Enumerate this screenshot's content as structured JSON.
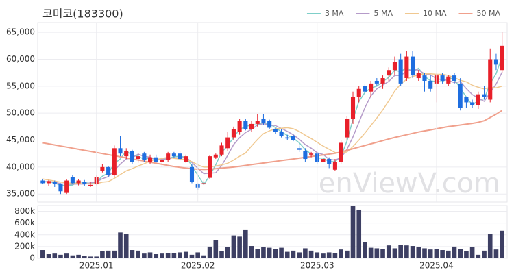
{
  "chart_data": [
    {
      "type": "candlestick",
      "title": "코미코(183300)",
      "watermark": "enViewV.com",
      "up_color": "#e8202a",
      "down_color": "#1e6ee0",
      "grid": true,
      "legend": "top-right",
      "ylim": [
        33500,
        66800
      ],
      "yticks": [
        {
          "value": 35000,
          "label": "35,000"
        },
        {
          "value": 40000,
          "label": "40,000"
        },
        {
          "value": 45000,
          "label": "45,000"
        },
        {
          "value": 50000,
          "label": "50,000"
        },
        {
          "value": 55000,
          "label": "55,000"
        },
        {
          "value": 60000,
          "label": "60,000"
        },
        {
          "value": 65000,
          "label": "65,000"
        }
      ],
      "open": [
        37500,
        37000,
        37200,
        36800,
        35200,
        38200,
        37000,
        37300,
        36500,
        36800,
        39300,
        40000,
        38500,
        43500,
        42000,
        43000,
        41500,
        42500,
        41000,
        41800,
        41000,
        41300,
        42500,
        42500,
        41000,
        40000,
        36800,
        36800,
        38000,
        41800,
        42300,
        43500,
        45500,
        46500,
        48500,
        47000,
        48000,
        49000,
        48500,
        47000,
        46500,
        45500,
        45800,
        43500,
        43000,
        42300,
        42500,
        41000,
        41500,
        39500,
        41000,
        45500,
        49000,
        53000,
        55000,
        54000,
        56000,
        55500,
        57000,
        58000,
        60000,
        56500,
        60500,
        56500,
        57000,
        56000,
        55500,
        57000,
        55500,
        57000,
        55500,
        53000,
        52000,
        51500,
        53500,
        52500,
        60000,
        58000
      ],
      "high": [
        37800,
        37600,
        37500,
        37000,
        37800,
        38500,
        37800,
        37600,
        37200,
        38500,
        40500,
        40200,
        44000,
        45800,
        43500,
        43200,
        42500,
        42800,
        42300,
        42300,
        41800,
        42800,
        42800,
        43000,
        42300,
        40500,
        37000,
        37500,
        42200,
        42500,
        44500,
        46500,
        47500,
        49000,
        49000,
        48500,
        49800,
        49800,
        48800,
        47200,
        47000,
        46000,
        46000,
        44000,
        43500,
        42800,
        42800,
        41800,
        41800,
        41500,
        45000,
        49500,
        54000,
        55000,
        55500,
        56000,
        56500,
        57000,
        58500,
        60500,
        61000,
        61500,
        61500,
        58000,
        57500,
        57000,
        57500,
        57500,
        57000,
        57500,
        56500,
        53000,
        52500,
        54000,
        55000,
        62000,
        61000,
        65000
      ],
      "low": [
        36800,
        36500,
        36300,
        35000,
        35000,
        36800,
        36600,
        36500,
        36300,
        36600,
        39000,
        38200,
        38200,
        42000,
        41500,
        40500,
        40800,
        41000,
        40500,
        40800,
        40000,
        40900,
        41800,
        41200,
        40800,
        37000,
        35800,
        36700,
        37800,
        41500,
        42000,
        43000,
        45000,
        46000,
        46800,
        46500,
        47500,
        47800,
        47000,
        46200,
        45500,
        45000,
        44800,
        42800,
        41000,
        41800,
        40500,
        40800,
        39800,
        39300,
        40500,
        45000,
        48000,
        52000,
        53500,
        53000,
        55000,
        54500,
        56000,
        57000,
        55000,
        56000,
        56500,
        56000,
        54000,
        54000,
        52000,
        55500,
        55000,
        55500,
        50500,
        51000,
        51000,
        50800,
        52500,
        52000,
        58000,
        57500
      ],
      "close": [
        37000,
        37400,
        36800,
        35500,
        37500,
        37000,
        37500,
        36800,
        36700,
        38200,
        40000,
        38500,
        43500,
        42500,
        43000,
        41000,
        42000,
        41300,
        41800,
        41000,
        41300,
        42500,
        42000,
        41500,
        42000,
        37200,
        36200,
        37000,
        42000,
        42300,
        44000,
        45500,
        47000,
        48500,
        47000,
        48000,
        48500,
        48200,
        47300,
        46500,
        45800,
        45300,
        45000,
        43200,
        41500,
        42500,
        41000,
        41500,
        40500,
        41000,
        44500,
        49000,
        53000,
        54500,
        54000,
        55500,
        55500,
        56500,
        58000,
        59500,
        55500,
        60500,
        57000,
        57500,
        56000,
        54500,
        57000,
        56000,
        56800,
        56000,
        51000,
        52000,
        51500,
        53500,
        53000,
        60000,
        59000,
        62500
      ],
      "series": [
        {
          "name": "3 MA",
          "color": "#7fcfc9",
          "values": [
            37200,
            37300,
            37070,
            36570,
            36600,
            36670,
            37330,
            37100,
            37000,
            37230,
            38300,
            38900,
            40670,
            41500,
            43000,
            42170,
            42000,
            41430,
            41700,
            41370,
            41370,
            41600,
            41930,
            42000,
            41830,
            40230,
            38470,
            36800,
            38400,
            40430,
            42770,
            43930,
            45500,
            47000,
            47500,
            47830,
            47830,
            48230,
            48000,
            47330,
            46530,
            45870,
            45370,
            44500,
            43230,
            42400,
            41670,
            41670,
            41000,
            41000,
            42000,
            44830,
            48830,
            52170,
            53830,
            54670,
            55000,
            55830,
            56670,
            58000,
            57670,
            58500,
            57670,
            58330,
            56830,
            56000,
            55830,
            55830,
            56600,
            56270,
            54600,
            53000,
            51500,
            52330,
            52670,
            55500,
            57330,
            60500
          ]
        },
        {
          "name": "5 MA",
          "color": "#b59bc9",
          "values": [
            37300,
            37300,
            37200,
            36900,
            36840,
            36840,
            36860,
            36860,
            37100,
            37240,
            37840,
            38240,
            39380,
            40540,
            41500,
            41700,
            42400,
            41960,
            41820,
            41420,
            41480,
            41520,
            41720,
            41660,
            41860,
            40840,
            39780,
            38780,
            38880,
            38940,
            40300,
            42160,
            44160,
            45460,
            46400,
            47000,
            47800,
            48040,
            47800,
            47700,
            47160,
            46620,
            45980,
            45160,
            44160,
            43500,
            42640,
            42340,
            41400,
            41300,
            41700,
            43300,
            45600,
            48300,
            51000,
            53200,
            54500,
            55200,
            55900,
            57000,
            57000,
            57760,
            58100,
            58000,
            57300,
            57100,
            56400,
            56200,
            56060,
            55660,
            55860,
            54560,
            53460,
            52800,
            52200,
            53800,
            55400,
            57600
          ]
        },
        {
          "name": "10 MA",
          "color": "#f0c890",
          "values": [
            37800,
            37600,
            37400,
            37200,
            37100,
            37000,
            36950,
            36900,
            36900,
            36900,
            37200,
            37300,
            37900,
            38600,
            39300,
            39700,
            40200,
            40600,
            41100,
            41400,
            41600,
            41800,
            41600,
            41500,
            41400,
            41000,
            40400,
            40000,
            40000,
            40200,
            40400,
            40700,
            41300,
            42000,
            42600,
            43900,
            45100,
            46200,
            46700,
            47100,
            47200,
            47300,
            47100,
            46600,
            45900,
            45300,
            44600,
            43900,
            43300,
            42700,
            42600,
            42800,
            43800,
            45000,
            46300,
            47700,
            49100,
            50600,
            52300,
            54100,
            55400,
            56300,
            56800,
            57100,
            57300,
            57300,
            57200,
            57200,
            57000,
            56600,
            56100,
            55800,
            55200,
            54800,
            54500,
            54800,
            54700,
            55000
          ]
        },
        {
          "name": "50 MA",
          "color": "#f0a08c",
          "values": [
            44500,
            44300,
            44100,
            43900,
            43700,
            43500,
            43300,
            43100,
            42900,
            42700,
            42500,
            42300,
            42100,
            41900,
            41700,
            41500,
            41300,
            41100,
            40900,
            40700,
            40500,
            40300,
            40100,
            39950,
            39800,
            39700,
            39600,
            39550,
            39600,
            39700,
            39800,
            39900,
            40000,
            40150,
            40300,
            40450,
            40600,
            40750,
            40900,
            41050,
            41200,
            41350,
            41500,
            41650,
            41800,
            41950,
            42100,
            42250,
            42400,
            42550,
            42800,
            43100,
            43400,
            43700,
            44000,
            44300,
            44600,
            44900,
            45200,
            45500,
            45750,
            46000,
            46250,
            46500,
            46700,
            46900,
            47100,
            47300,
            47500,
            47650,
            47800,
            47950,
            48100,
            48300,
            48600,
            49200,
            49800,
            50500
          ]
        }
      ]
    },
    {
      "type": "bar",
      "color": "#3d3f63",
      "grid": true,
      "ylim": [
        0,
        900000
      ],
      "yticks": [
        0,
        {
          "value": 200000,
          "label": "200k"
        },
        {
          "value": 400000,
          "label": "400k"
        },
        {
          "value": 600000,
          "label": "600k"
        },
        {
          "value": 800000,
          "label": "800k"
        }
      ],
      "categories": [
        null,
        null,
        null,
        null,
        null,
        null,
        null,
        null,
        null,
        "2025.01",
        null,
        null,
        null,
        null,
        null,
        null,
        null,
        null,
        null,
        null,
        null,
        null,
        null,
        null,
        null,
        null,
        "2025.02",
        null,
        null,
        null,
        null,
        null,
        null,
        null,
        null,
        null,
        null,
        null,
        null,
        null,
        null,
        null,
        null,
        null,
        null,
        null,
        "2025.03",
        null,
        null,
        null,
        null,
        null,
        null,
        null,
        null,
        null,
        null,
        null,
        null,
        null,
        null,
        null,
        null,
        null,
        null,
        null,
        "2025.04",
        null,
        null,
        null,
        null,
        null,
        null,
        null,
        null,
        null,
        null,
        null
      ],
      "values": [
        140000,
        70000,
        80000,
        60000,
        80000,
        50000,
        60000,
        40000,
        30000,
        30000,
        120000,
        130000,
        130000,
        440000,
        410000,
        140000,
        130000,
        80000,
        100000,
        70000,
        80000,
        90000,
        90000,
        100000,
        110000,
        60000,
        100000,
        50000,
        200000,
        310000,
        120000,
        190000,
        390000,
        370000,
        480000,
        210000,
        160000,
        190000,
        180000,
        160000,
        180000,
        110000,
        130000,
        100000,
        170000,
        130000,
        100000,
        80000,
        100000,
        90000,
        150000,
        130000,
        900000,
        830000,
        280000,
        180000,
        170000,
        160000,
        220000,
        170000,
        230000,
        220000,
        210000,
        190000,
        170000,
        150000,
        160000,
        140000,
        130000,
        200000,
        160000,
        120000,
        190000,
        60000,
        130000,
        420000,
        150000,
        470000
      ]
    }
  ]
}
